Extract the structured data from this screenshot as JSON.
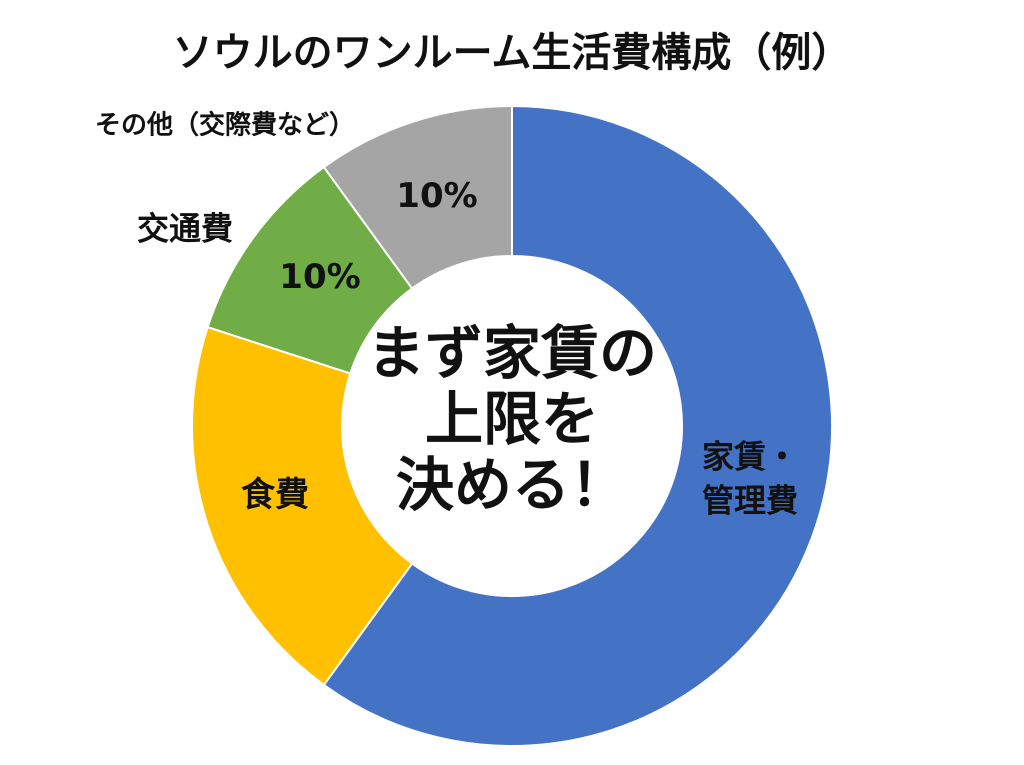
{
  "chart_data": {
    "type": "pie",
    "variant": "donut",
    "title": "ソウルのワンルーム生活費構成（例）",
    "categories": [
      "家賃・管理費",
      "食費",
      "交通費",
      "その他（交際費など）"
    ],
    "values": [
      60,
      20,
      10,
      10
    ],
    "value_labels": [
      "",
      "",
      "10%",
      "10%"
    ],
    "slice_label_lines": [
      [
        "家賃・",
        "管理費"
      ],
      [
        "食費"
      ],
      [
        "交通費"
      ],
      [
        "その他（交際費など）"
      ]
    ],
    "colors": [
      "#4472C4",
      "#FFC000",
      "#70AD47",
      "#A5A5A5"
    ],
    "start_angle": "12 o'clock",
    "direction": "clockwise",
    "legend": "none",
    "center_text": [
      "まず家賃の",
      "上限を",
      "決める！"
    ]
  }
}
